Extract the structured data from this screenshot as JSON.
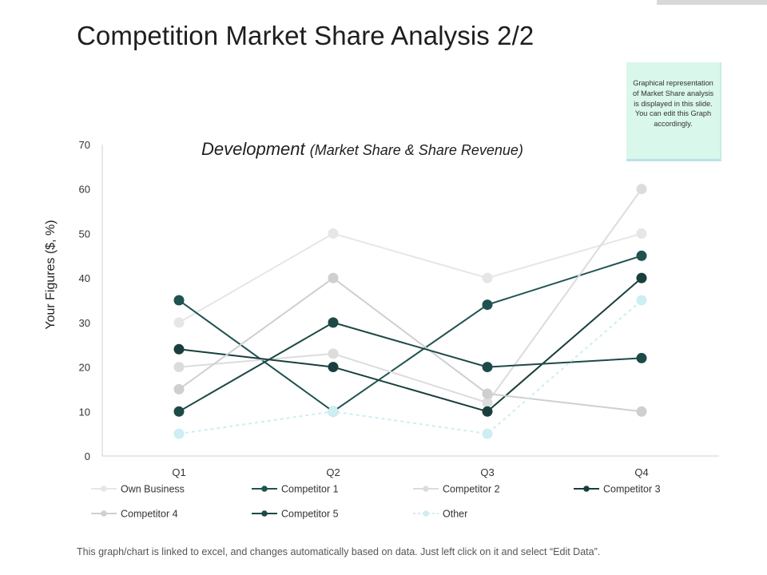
{
  "slide": {
    "title": "Competition Market Share Analysis 2/2",
    "note": "Graphical representation of Market Share analysis is displayed in this slide. You can edit this Graph accordingly.",
    "footer": "This graph/chart is linked to excel, and changes automatically based on data. Just left click on it and select “Edit Data”."
  },
  "chart_data": {
    "type": "line",
    "title": "Development",
    "subtitle": "(Market Share & Share Revenue)",
    "xlabel": "",
    "ylabel": "Your Figures ($, %)",
    "categories": [
      "Q1",
      "Q2",
      "Q3",
      "Q4"
    ],
    "ylim": [
      0,
      70
    ],
    "yticks": [
      0,
      10,
      20,
      30,
      40,
      50,
      60,
      70
    ],
    "grid": false,
    "legend_position": "bottom",
    "series": [
      {
        "name": "Own Business",
        "values": [
          30,
          50,
          40,
          50
        ],
        "color": "#e6e6e6",
        "dashed": false
      },
      {
        "name": "Competitor 1",
        "values": [
          35,
          10,
          34,
          45
        ],
        "color": "#1f5250",
        "dashed": false
      },
      {
        "name": "Competitor 2",
        "values": [
          20,
          23,
          12,
          60
        ],
        "color": "#dcdcdc",
        "dashed": false
      },
      {
        "name": "Competitor 3",
        "values": [
          24,
          20,
          10,
          40
        ],
        "color": "#183f3d",
        "dashed": false
      },
      {
        "name": "Competitor 4",
        "values": [
          15,
          40,
          14,
          10
        ],
        "color": "#cfcfcf",
        "dashed": false
      },
      {
        "name": "Competitor 5",
        "values": [
          10,
          30,
          20,
          22
        ],
        "color": "#1d4a47",
        "dashed": false
      },
      {
        "name": "Other",
        "values": [
          5,
          10,
          5,
          35
        ],
        "color": "#cdeef2",
        "dashed": true
      }
    ]
  }
}
